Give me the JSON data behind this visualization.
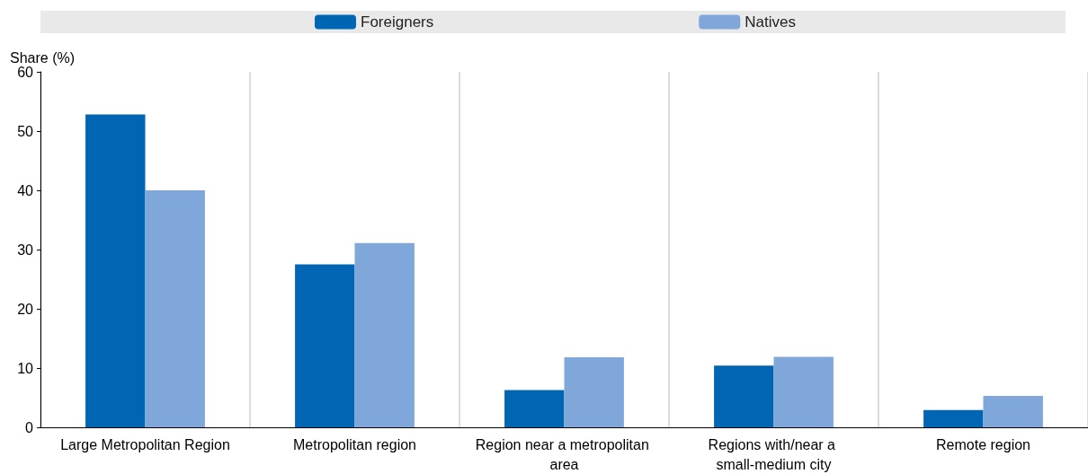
{
  "chart_data": {
    "type": "bar",
    "ylabel": "Share (%)",
    "categories": [
      "Large Metropolitan Region",
      "Metropolitan region",
      "Region near a metropolitan area",
      "Regions with/near a small-medium city",
      "Remote region"
    ],
    "series": [
      {
        "name": "Foreigners",
        "color": "#0066b3",
        "values": [
          52.8,
          27.5,
          6.3,
          10.4,
          2.9
        ]
      },
      {
        "name": "Natives",
        "color": "#7fa7d9",
        "values": [
          40.0,
          31.1,
          11.8,
          11.9,
          5.3
        ]
      }
    ],
    "ylim": [
      0,
      60
    ],
    "yticks": [
      0,
      10,
      20,
      30,
      40,
      50,
      60
    ],
    "grid": "x",
    "legend": "top"
  }
}
